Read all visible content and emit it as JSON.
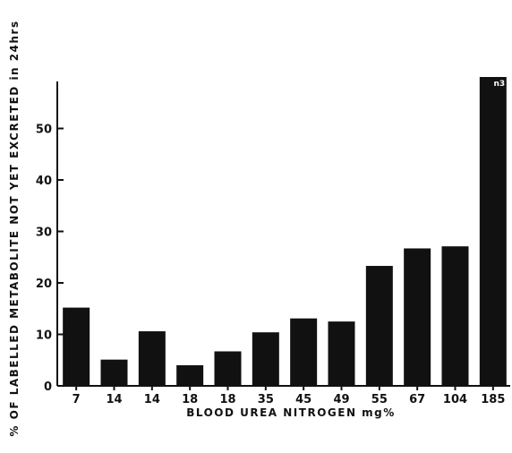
{
  "chart_data": {
    "type": "bar",
    "title": "",
    "xlabel": "BLOOD UREA NITROGEN mg%",
    "ylabel": "% OF LABELLED METABOLITE NOT YET EXCRETED in 24hrs",
    "categories": [
      "7",
      "14",
      "14",
      "18",
      "18",
      "35",
      "45",
      "49",
      "55",
      "67",
      "104",
      "185"
    ],
    "values": [
      15.2,
      5.1,
      10.6,
      4.0,
      6.7,
      10.4,
      13.1,
      12.5,
      23.3,
      26.7,
      27.1,
      60.0
    ],
    "yticks": [
      0,
      10,
      20,
      30,
      40,
      50
    ],
    "ylim": [
      0,
      60
    ],
    "grid": false,
    "bar_annotation": {
      "category_index": 11,
      "text": "n3"
    },
    "bar_color": "#111111",
    "axis_color": "#111111"
  }
}
